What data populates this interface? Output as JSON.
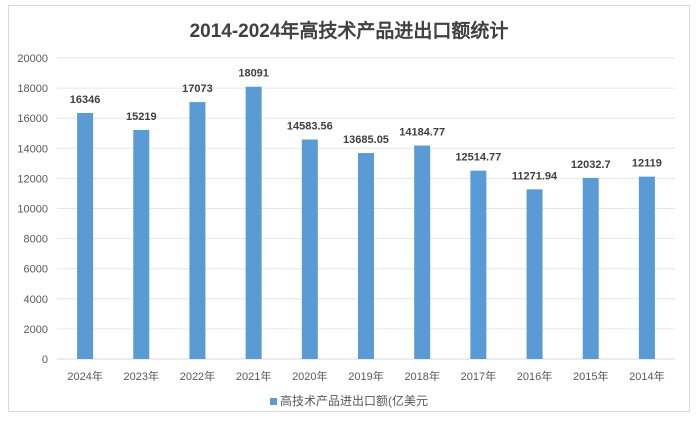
{
  "chart_data": {
    "type": "bar",
    "title": "2014-2024年高技术产品进出口额统计",
    "categories": [
      "2024年",
      "2023年",
      "2022年",
      "2021年",
      "2020年",
      "2019年",
      "2018年",
      "2017年",
      "2016年",
      "2015年",
      "2014年"
    ],
    "series": [
      {
        "name": "高技术产品进出口额(亿美元",
        "values": [
          16346,
          15219,
          17073,
          18091,
          14583.56,
          13685.05,
          14184.77,
          12514.77,
          11271.94,
          12032.7,
          12119
        ],
        "color": "#5b9bd5"
      }
    ],
    "value_labels": [
      "16346",
      "15219",
      "17073",
      "18091",
      "14583.56",
      "13685.05",
      "14184.77",
      "12514.77",
      "11271.94",
      "12032.7",
      "12119"
    ],
    "yticks": [
      0,
      2000,
      4000,
      6000,
      8000,
      10000,
      12000,
      14000,
      16000,
      18000,
      20000
    ],
    "ylim": [
      0,
      20000
    ],
    "grid": true,
    "legend_position": "bottom",
    "xlabel": "",
    "ylabel": ""
  }
}
